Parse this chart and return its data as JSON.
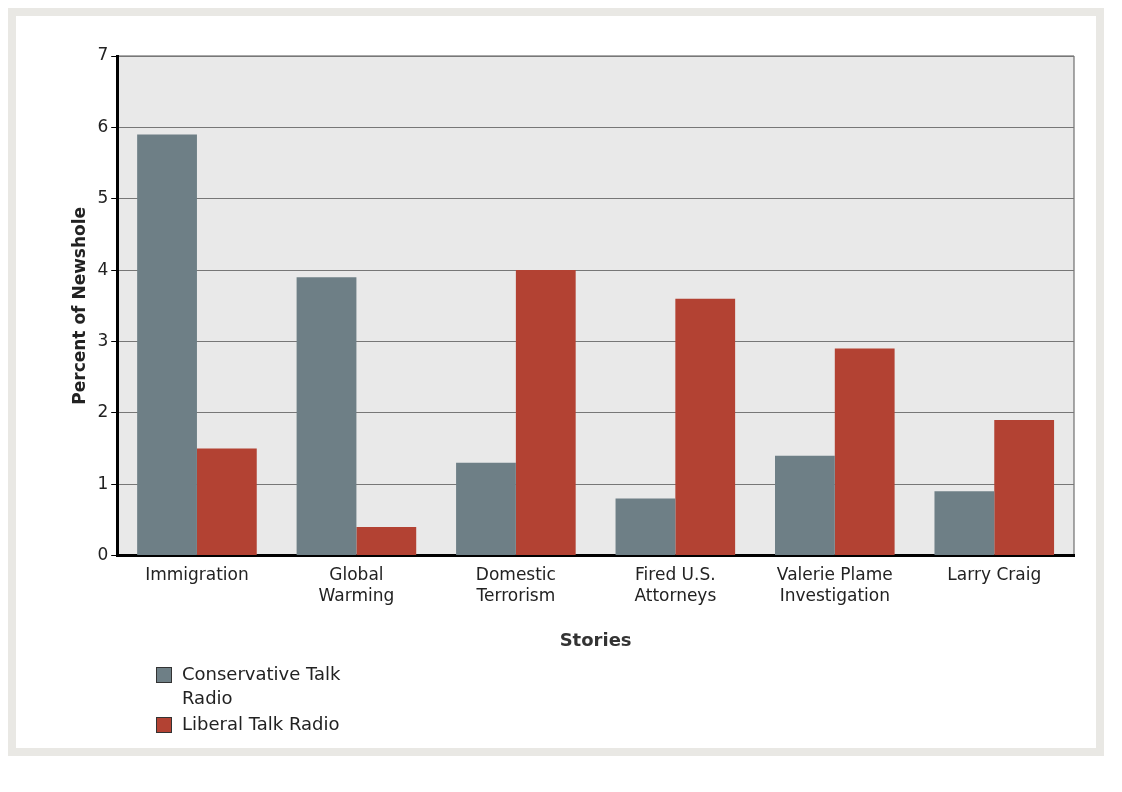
{
  "chart_data": {
    "type": "bar",
    "xlabel": "Stories",
    "ylabel": "Percent of Newshole",
    "categories": [
      "Immigration",
      "Global Warming",
      "Domestic Terrorism",
      "Fired U.S. Attorneys",
      "Valerie Plame Investigation",
      "Larry Craig"
    ],
    "series": [
      {
        "name": "Conservative Talk Radio",
        "color": "#6e7f86",
        "values": [
          5.9,
          3.9,
          1.3,
          0.8,
          1.4,
          0.9
        ]
      },
      {
        "name": "Liberal Talk Radio",
        "color": "#b34233",
        "values": [
          1.5,
          0.4,
          4.0,
          3.6,
          2.9,
          1.9
        ]
      }
    ],
    "ylim": [
      0,
      7
    ],
    "yticks": [
      0,
      1,
      2,
      3,
      4,
      5,
      6,
      7
    ],
    "grid": "y",
    "legend": "bottom left"
  }
}
